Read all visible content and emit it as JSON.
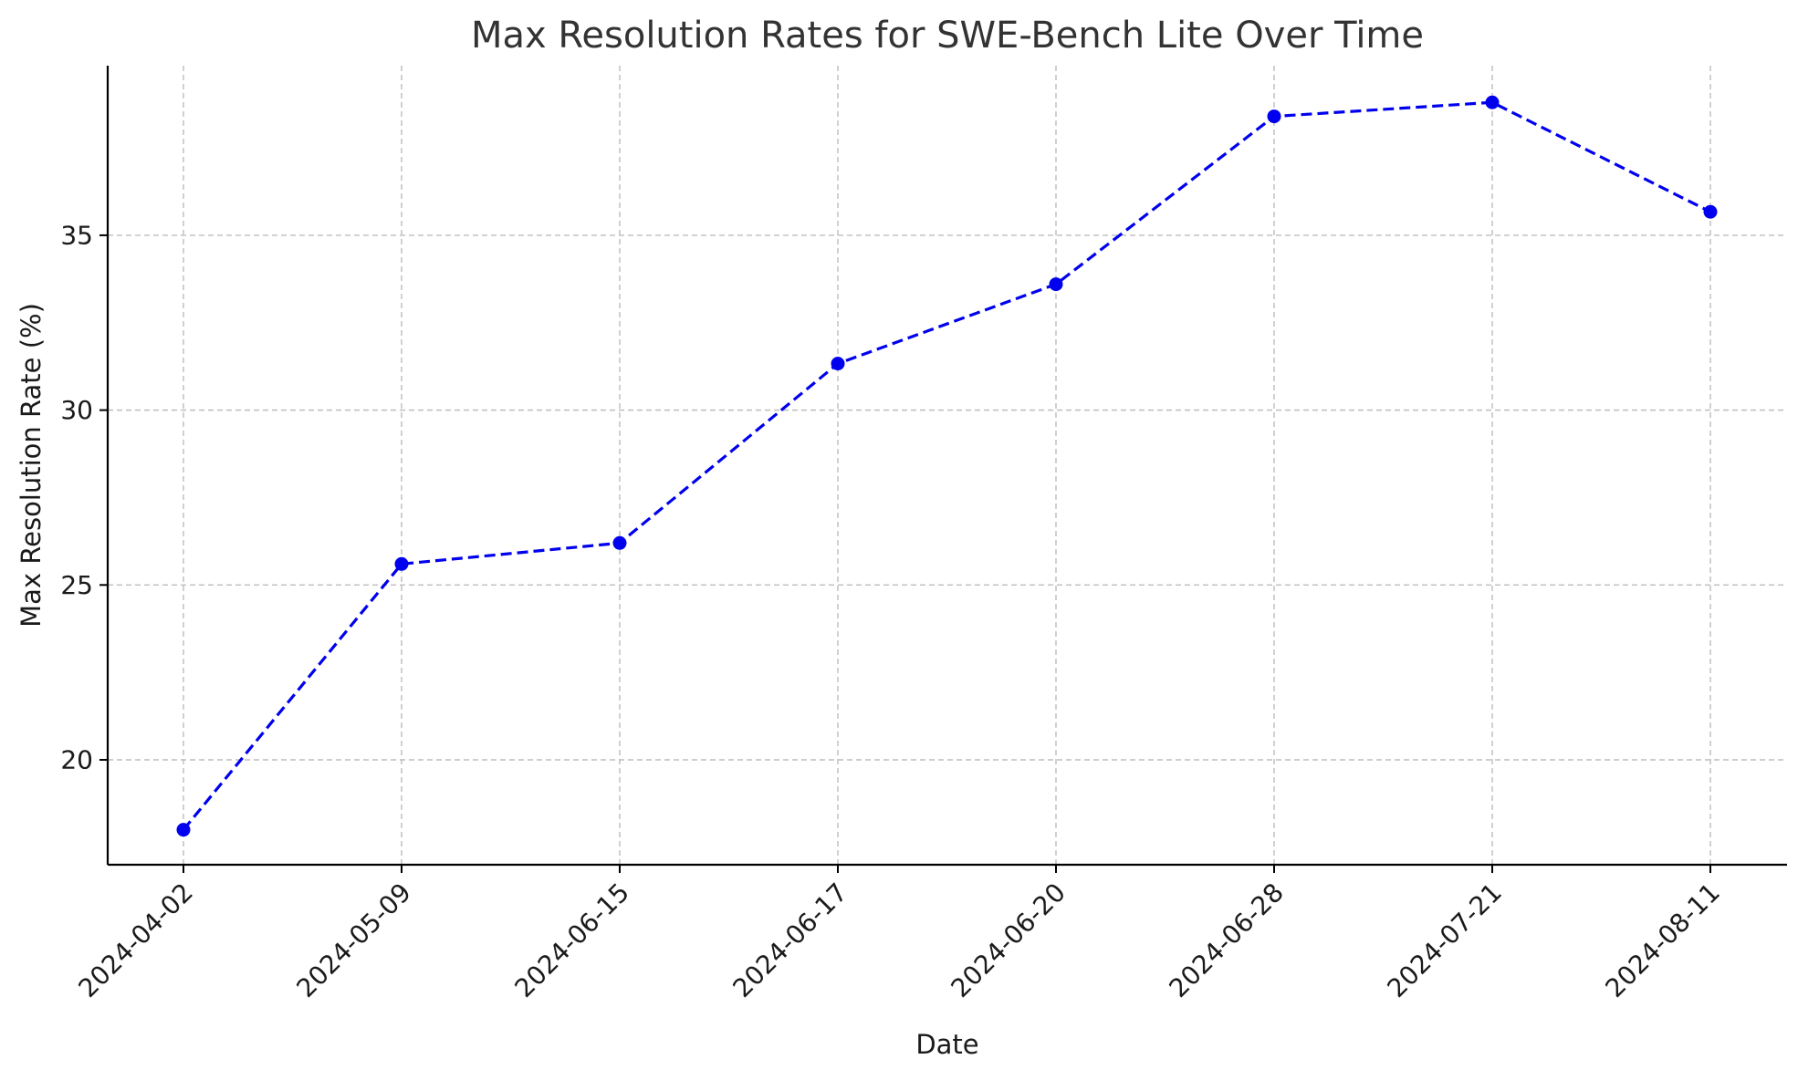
{
  "chart_data": {
    "type": "line",
    "title": "Max Resolution Rates for SWE-Bench Lite Over Time",
    "xlabel": "Date",
    "ylabel": "Max Resolution Rate (%)",
    "x": [
      "2024-04-02",
      "2024-05-09",
      "2024-06-15",
      "2024-06-17",
      "2024-06-20",
      "2024-06-28",
      "2024-07-21",
      "2024-08-11"
    ],
    "x_scale": "categorical",
    "series": [
      {
        "values": [
          18.0,
          25.6,
          26.2,
          31.33,
          33.6,
          38.4,
          38.8,
          35.67
        ],
        "color": "#0000ee",
        "line_style": "dashed",
        "marker": "circle"
      }
    ],
    "yticks": [
      20,
      25,
      30,
      35
    ],
    "ylim": [
      17.0,
      39.85
    ],
    "grid": true,
    "legend": "none"
  }
}
